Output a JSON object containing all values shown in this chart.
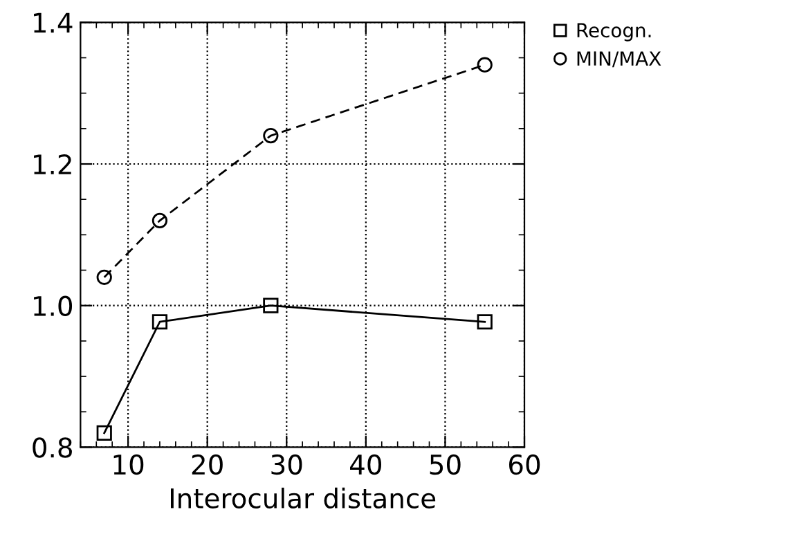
{
  "chart_data": {
    "type": "line",
    "xlabel": "Interocular distance",
    "xlim": [
      4,
      60
    ],
    "xticks": [
      10,
      20,
      30,
      40,
      50,
      60
    ],
    "ylim": [
      0.8,
      1.4
    ],
    "yticks": [
      {
        "value": 0.8,
        "label": "0.8"
      },
      {
        "value": 1.0,
        "label": "1.0"
      },
      {
        "value": 1.2,
        "label": "1.2"
      },
      {
        "value": 1.4,
        "label": "1.4"
      }
    ],
    "grid": true,
    "legend": "top right",
    "series": [
      {
        "name": "Recogn.",
        "color": "#000000",
        "marker": "square",
        "line_style": "solid",
        "x": [
          7,
          14,
          28,
          55
        ],
        "values": [
          0.82,
          0.977,
          1.0,
          0.977
        ]
      },
      {
        "name": "MIN/MAX",
        "color": "#000000",
        "marker": "circle",
        "line_style": "dashed",
        "x": [
          7,
          14,
          28,
          55
        ],
        "values": [
          1.04,
          1.12,
          1.24,
          1.34
        ]
      }
    ]
  }
}
